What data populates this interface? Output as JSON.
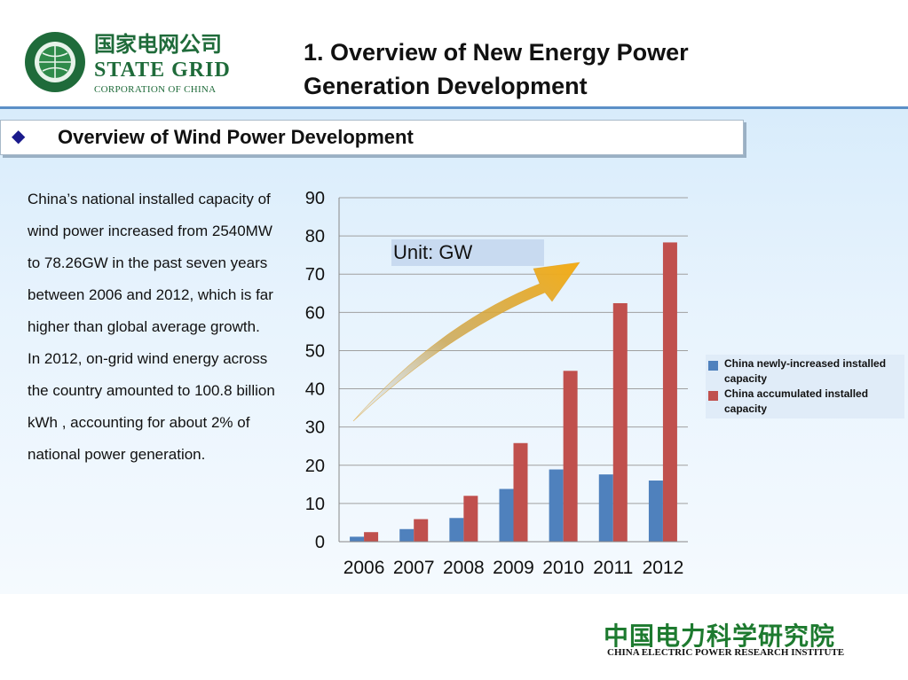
{
  "header": {
    "logo_cn": "国家电网公司",
    "logo_state": "STATE GRID",
    "logo_corp": "CORPORATION OF CHINA",
    "logo_ring": "STATE GRID CORPORATION OF CHINA",
    "title_line1": "1. Overview of New Energy Power",
    "title_line2": "Generation Development"
  },
  "section": {
    "bullet": "◆",
    "title": "Overview of Wind Power Development"
  },
  "body": {
    "paragraph1": "China’s national installed capacity of wind power increased from 2540MW to 78.26GW in the past seven years between 2006 and 2012, which is far higher than global average growth.",
    "paragraph2": "In 2012, on-grid wind energy across the country amounted to 100.8 billion kWh , accounting for about 2% of national power generation."
  },
  "chart_data": {
    "type": "bar",
    "categories": [
      "2006",
      "2007",
      "2008",
      "2009",
      "2010",
      "2011",
      "2012"
    ],
    "series": [
      {
        "name": "China newly-increased installed capacity",
        "color": "#4f81bd",
        "values": [
          1.3,
          3.3,
          6.2,
          13.8,
          18.9,
          17.6,
          16.0
        ]
      },
      {
        "name": "China accumulated installed capacity",
        "color": "#c0504d",
        "values": [
          2.5,
          5.9,
          12.0,
          25.8,
          44.7,
          62.4,
          78.3
        ]
      }
    ],
    "yticks": [
      0,
      10,
      20,
      30,
      40,
      50,
      60,
      70,
      80,
      90
    ],
    "ylim": [
      0,
      90
    ],
    "grid": true,
    "annotation": "Unit: GW",
    "legend_position": "right",
    "title": "",
    "xlabel": "",
    "ylabel": ""
  },
  "footer": {
    "org_cn": "中国电力科学研究院",
    "org_en": "CHINA ELECTRIC POWER RESEARCH INSTITUTE"
  },
  "colors": {
    "header_rule": "#5b8fc7",
    "arrow": "#f2a81d",
    "footer_green": "#1d7a2f"
  }
}
